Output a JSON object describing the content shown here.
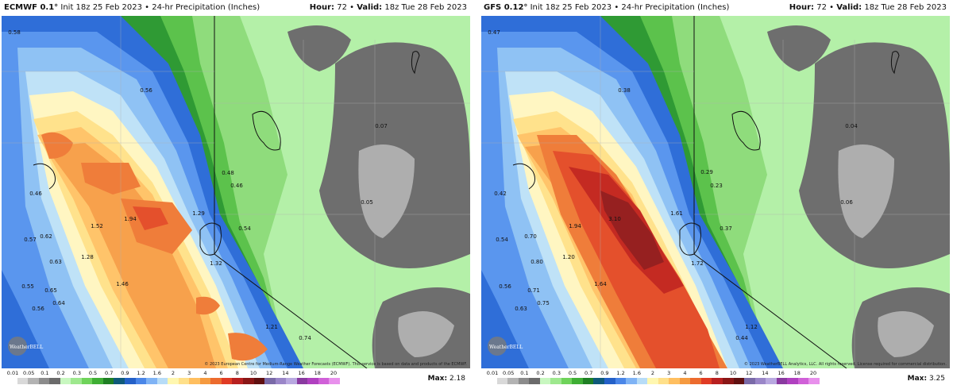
{
  "panels": [
    {
      "model": "ECMWF 0.1°",
      "init": "Init 18z 25 Feb 2023",
      "field": "24-hr Precipitation (Inches)",
      "hour_label": "Hour:",
      "hour": "72",
      "valid_label": "Valid:",
      "valid": "18z Tue 28 Feb 2023",
      "copyright": "© 2023 European Centre for Medium-Range Weather Forecasts (ECMWF). This service is based on data and products of the ECMWF.",
      "logo": "WeatherBELL",
      "max_label": "Max:",
      "max": "2.18",
      "point_labels": [
        "0.58",
        "0.56",
        "0.07",
        "0.48",
        "0.46",
        "0.46",
        "0.05",
        "1.29",
        "1.94",
        "1.52",
        "0.62",
        "0.54",
        "0.57",
        "1.28",
        "0.63",
        "1.32",
        "1.46",
        "0.55",
        "0.65",
        "0.64",
        "0.56",
        "1.21",
        "0.74"
      ]
    },
    {
      "model": "GFS 0.12°",
      "init": "Init 18z 25 Feb 2023",
      "field": "24-hr Precipitation (Inches)",
      "hour_label": "Hour:",
      "hour": "72",
      "valid_label": "Valid:",
      "valid": "18z Tue 28 Feb 2023",
      "copyright": "© 2023 WeatherBELL Analytics, LLC. All rights reserved. License required for commercial distribution.",
      "logo": "WeatherBELL",
      "max_label": "Max:",
      "max": "3.25",
      "point_labels": [
        "0.47",
        "0.38",
        "0.04",
        "0.29",
        "0.23",
        "0.42",
        "0.06",
        "3.10",
        "1.61",
        "1.94",
        "0.37",
        "0.54",
        "0.70",
        "1.72",
        "0.80",
        "1.20",
        "1.64",
        "0.56",
        "0.71",
        "0.75",
        "0.63",
        "1.12",
        "0.44"
      ]
    }
  ],
  "colorbar": {
    "labels": [
      "0.01",
      "0.05",
      "0.1",
      "0.2",
      "0.3",
      "0.5",
      "0.7",
      "0.9",
      "1.2",
      "1.6",
      "2",
      "3",
      "4",
      "6",
      "8",
      "10",
      "12",
      "14",
      "16",
      "18",
      "20"
    ],
    "colors": [
      "#ffffff",
      "#d9d9d9",
      "#b3b3b3",
      "#8c8c8c",
      "#6b6b6b",
      "#c8f7c0",
      "#9ee88e",
      "#6fd35a",
      "#3fae34",
      "#1f7f24",
      "#0f5a7a",
      "#2460c8",
      "#4a86e8",
      "#7fb3f5",
      "#b7dcf7",
      "#fff7b0",
      "#ffe08a",
      "#ffbf60",
      "#f59a40",
      "#ec6b2e",
      "#e03b24",
      "#b82020",
      "#8a1616",
      "#601010",
      "#7a6aa8",
      "#9a86c8",
      "#b8a8e0",
      "#8a3aa0",
      "#b040c0",
      "#d060d8",
      "#e890ec"
    ]
  }
}
